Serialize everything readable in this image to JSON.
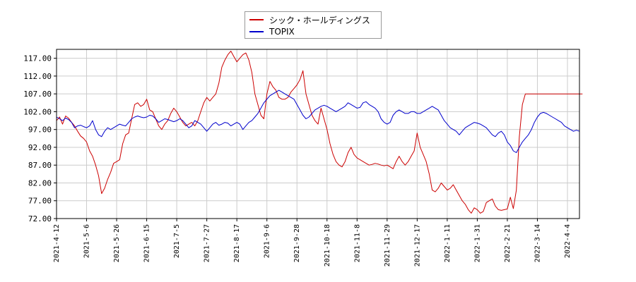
{
  "chart_data": {
    "type": "line",
    "ylim": [
      72.0,
      119.5
    ],
    "y_ticks": [
      "117.00",
      "112.00",
      "107.00",
      "102.00",
      "97.00",
      "92.00",
      "87.00",
      "82.00",
      "77.00",
      "72.00"
    ],
    "y_tick_values": [
      117,
      112,
      107,
      102,
      97,
      92,
      87,
      82,
      77,
      72
    ],
    "x_ticks": [
      "2021-4-12",
      "2021-5-6",
      "2021-5-26",
      "2021-6-15",
      "2021-7-5",
      "2021-7-27",
      "2021-8-17",
      "2021-9-6",
      "2021-9-28",
      "2021-10-18",
      "2021-11-8",
      "2021-11-29",
      "2021-12-17",
      "2022-1-11",
      "2022-1-31",
      "2022-2-21",
      "2022-3-14",
      "2022-4-4"
    ],
    "x_tick_index": [
      0,
      10,
      20,
      30,
      40,
      50,
      60,
      70,
      80,
      90,
      100,
      110,
      120,
      130,
      140,
      150,
      160,
      170
    ],
    "n_points": 175,
    "grid": true,
    "legend_position": "top-center",
    "series": [
      {
        "name": "シック・ホールディングス",
        "color": "#cc0000",
        "values": [
          99.5,
          100.5,
          98.5,
          100.8,
          100.2,
          99.0,
          98.0,
          96.5,
          95.2,
          94.5,
          93.5,
          91.0,
          89.5,
          87.0,
          84.0,
          79.0,
          80.5,
          83.0,
          85.0,
          87.5,
          88.0,
          88.5,
          93.0,
          95.5,
          96.0,
          100.0,
          104.0,
          104.5,
          103.5,
          104.0,
          105.5,
          102.5,
          102.0,
          100.0,
          98.0,
          97.0,
          98.5,
          99.5,
          101.5,
          103.0,
          102.0,
          100.5,
          99.0,
          98.0,
          98.5,
          99.0,
          98.0,
          99.5,
          102.0,
          104.5,
          106.0,
          105.0,
          106.0,
          107.0,
          110.0,
          114.5,
          116.5,
          118.0,
          119.0,
          117.5,
          116.0,
          117.0,
          118.0,
          118.5,
          116.5,
          113.0,
          107.0,
          104.0,
          101.0,
          100.0,
          107.0,
          110.5,
          109.0,
          108.0,
          106.0,
          105.5,
          105.5,
          106.0,
          107.5,
          108.5,
          109.5,
          111.0,
          113.5,
          107.0,
          104.0,
          101.0,
          99.5,
          98.5,
          103.0,
          100.0,
          97.0,
          93.0,
          90.0,
          88.0,
          87.0,
          86.5,
          88.0,
          90.5,
          92.0,
          90.0,
          89.0,
          88.5,
          88.0,
          87.5,
          87.0,
          87.2,
          87.5,
          87.3,
          87.0,
          86.8,
          87.0,
          86.5,
          86.0,
          88.0,
          89.5,
          88.0,
          87.0,
          88.0,
          89.5,
          91.0,
          96.0,
          92.0,
          90.0,
          88.0,
          84.5,
          80.0,
          79.5,
          80.5,
          82.0,
          81.0,
          80.0,
          80.5,
          81.5,
          80.0,
          78.5,
          77.0,
          76.0,
          74.5,
          73.5,
          75.0,
          74.5,
          73.5,
          74.0,
          76.5,
          77.0,
          77.5,
          75.5,
          74.5,
          74.3,
          74.5,
          74.7,
          78.0,
          74.8,
          80.0,
          95.0,
          104.0,
          107.0,
          107.0,
          107.0,
          107.0,
          107.0,
          107.0,
          107.0,
          107.0,
          107.0,
          107.0,
          107.0,
          107.0,
          107.0,
          107.0,
          107.0,
          107.0,
          107.0,
          107.0,
          107.0,
          107.0
        ]
      },
      {
        "name": "TOPIX",
        "color": "#0000cc",
        "values": [
          100.5,
          100.0,
          99.5,
          100.2,
          99.8,
          99.0,
          97.5,
          98.0,
          98.2,
          97.8,
          97.5,
          98.0,
          99.5,
          97.0,
          95.5,
          95.0,
          96.5,
          97.5,
          97.0,
          97.5,
          98.0,
          98.5,
          98.2,
          98.0,
          99.0,
          100.0,
          100.5,
          100.8,
          100.5,
          100.3,
          100.5,
          101.0,
          100.8,
          100.0,
          99.0,
          99.5,
          100.0,
          99.8,
          99.5,
          99.2,
          99.5,
          100.0,
          99.5,
          98.5,
          97.5,
          98.0,
          99.5,
          99.0,
          98.5,
          97.5,
          96.5,
          97.5,
          98.5,
          99.0,
          98.2,
          98.5,
          99.0,
          98.8,
          98.0,
          98.5,
          99.0,
          98.5,
          97.0,
          98.0,
          99.0,
          99.5,
          100.5,
          101.5,
          103.0,
          104.5,
          105.5,
          106.5,
          107.0,
          107.5,
          108.0,
          107.5,
          107.0,
          106.5,
          106.0,
          105.5,
          104.0,
          102.5,
          101.0,
          100.0,
          100.5,
          101.5,
          102.5,
          103.0,
          103.5,
          103.8,
          103.5,
          103.0,
          102.5,
          102.0,
          102.5,
          103.0,
          103.5,
          104.5,
          104.0,
          103.5,
          103.0,
          103.2,
          104.5,
          104.8,
          104.0,
          103.5,
          103.0,
          102.0,
          100.0,
          99.0,
          98.5,
          99.0,
          101.0,
          102.0,
          102.5,
          102.0,
          101.5,
          101.5,
          102.0,
          102.0,
          101.5,
          101.5,
          102.0,
          102.5,
          103.0,
          103.5,
          103.0,
          102.5,
          101.0,
          99.5,
          98.5,
          97.5,
          97.0,
          96.5,
          95.5,
          96.5,
          97.5,
          98.0,
          98.5,
          99.0,
          98.8,
          98.5,
          98.0,
          97.5,
          96.5,
          95.5,
          95.0,
          96.0,
          96.5,
          95.5,
          93.5,
          92.5,
          91.0,
          90.5,
          92.0,
          93.5,
          94.5,
          95.5,
          97.0,
          99.0,
          100.5,
          101.5,
          101.8,
          101.5,
          101.0,
          100.5,
          100.0,
          99.5,
          99.0,
          98.0,
          97.5,
          97.0,
          96.5,
          96.8,
          96.5
        ]
      }
    ]
  }
}
